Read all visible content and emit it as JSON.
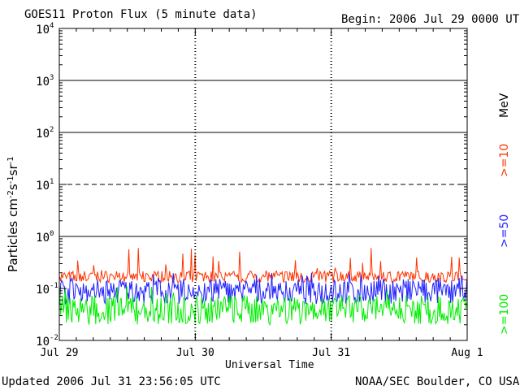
{
  "chart_data": {
    "type": "line",
    "title": "GOES11 Proton Flux (5 minute data)",
    "begin_label": "Begin: 2006 Jul 29 0000 UTC",
    "xlabel": "Universal Time",
    "ylabel_text": "Particles cm",
    "ylabel_sup1": "-2",
    "ylabel_mid1": "s",
    "ylabel_sup2": "-1",
    "ylabel_mid2": "sr",
    "ylabel_sup3": "-1",
    "y_scale": "log",
    "ylim": [
      0.01,
      10000
    ],
    "y_ticks": [
      {
        "base": "10",
        "exp": "-2"
      },
      {
        "base": "10",
        "exp": "-1"
      },
      {
        "base": "10",
        "exp": "0"
      },
      {
        "base": "10",
        "exp": "1"
      },
      {
        "base": "10",
        "exp": "2"
      },
      {
        "base": "10",
        "exp": "3"
      },
      {
        "base": "10",
        "exp": "4"
      }
    ],
    "x_ticks": [
      "Jul 29",
      "Jul 30",
      "Jul 31",
      "Aug 1"
    ],
    "xlim_days": [
      "2006-07-29",
      "2006-08-01"
    ],
    "threshold_lines": [
      {
        "value": 1000,
        "style": "solid"
      },
      {
        "value": 100,
        "style": "solid"
      },
      {
        "value": 10,
        "style": "dashed"
      },
      {
        "value": 1,
        "style": "solid"
      }
    ],
    "unit_label": "MeV",
    "series": [
      {
        "name": ">=10",
        "color": "#ff3300",
        "baseline": 0.17,
        "range": [
          0.13,
          0.6
        ]
      },
      {
        "name": ">=50",
        "color": "#2020ff",
        "baseline": 0.09,
        "range": [
          0.05,
          0.2
        ]
      },
      {
        "name": ">=100",
        "color": "#00ee00",
        "baseline": 0.04,
        "range": [
          0.02,
          0.12
        ]
      }
    ]
  },
  "footer": {
    "updated": "Updated 2006 Jul 31 23:56:05 UTC",
    "credit": "NOAA/SEC Boulder, CO USA"
  }
}
